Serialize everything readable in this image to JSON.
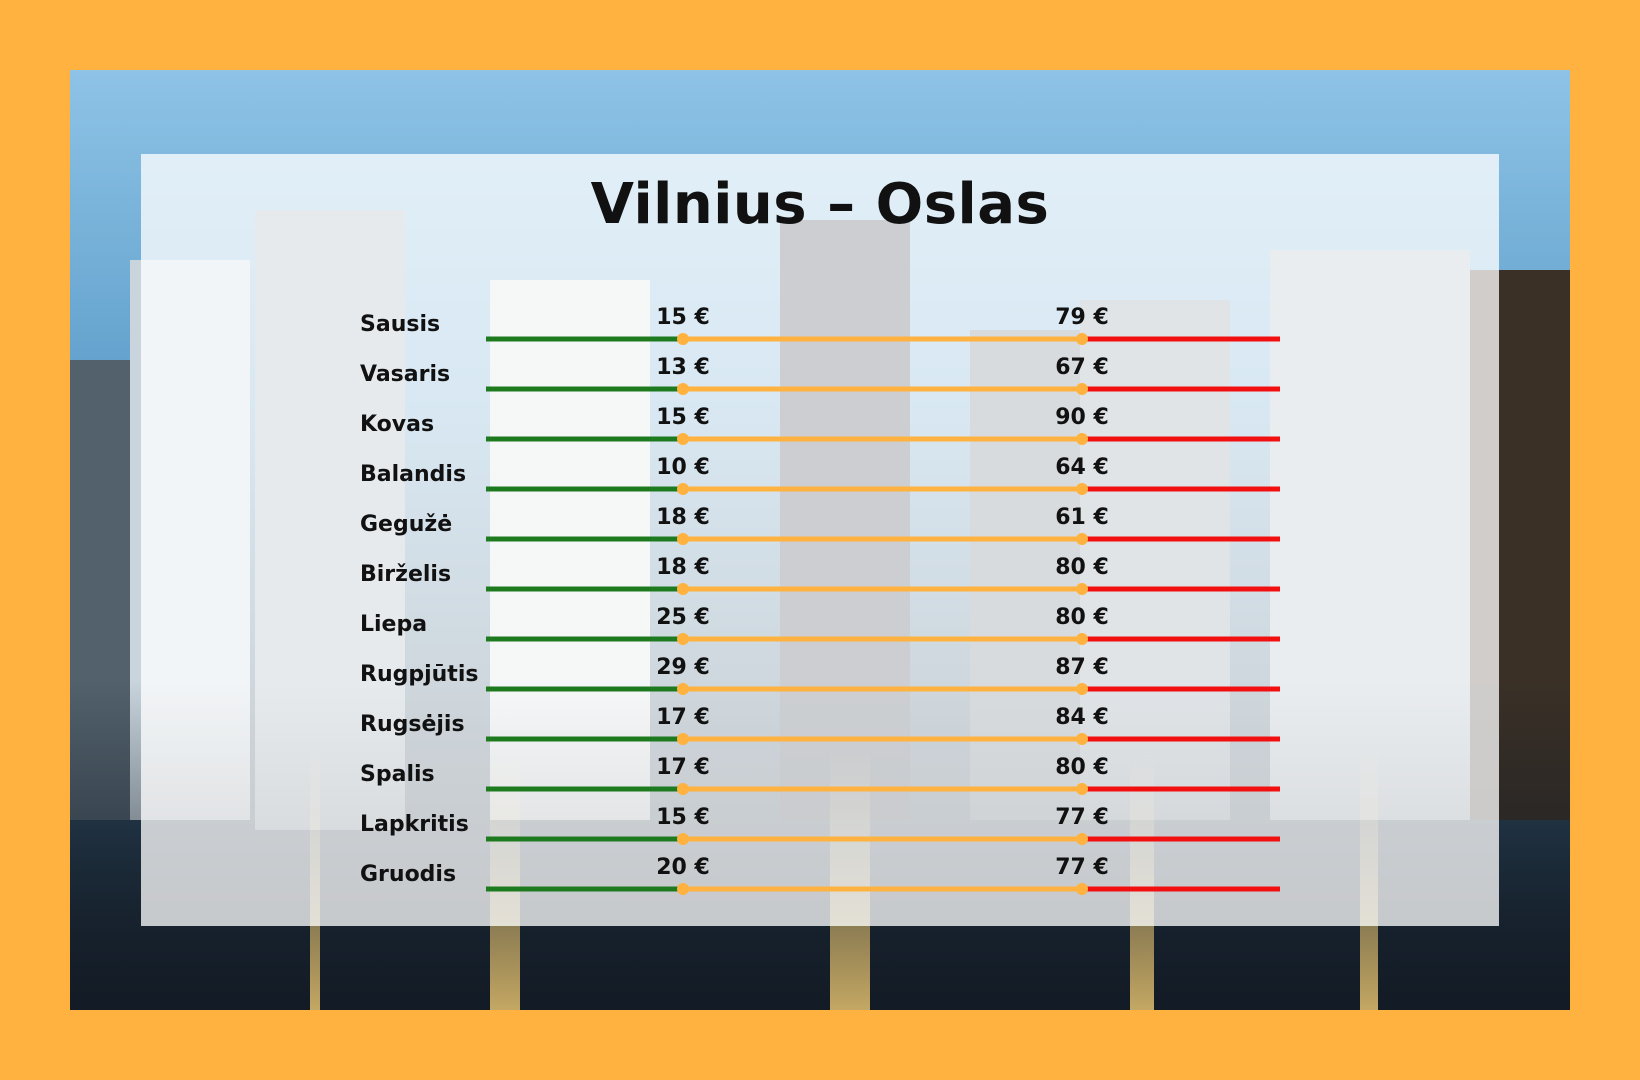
{
  "colors": {
    "background": "#FFB23F",
    "low_segment": "#1E7A1E",
    "mid_segment": "#FFB23F",
    "high_segment": "#F20F0F",
    "marker": "#FFB23F"
  },
  "chart_data": {
    "type": "range",
    "title": "Vilnius – Oslas",
    "currency": "€",
    "categories": [
      "Sausis",
      "Vasaris",
      "Kovas",
      "Balandis",
      "Gegužė",
      "Birželis",
      "Liepa",
      "Rugpjūtis",
      "Rugsėjis",
      "Spalis",
      "Lapkritis",
      "Gruodis"
    ],
    "series": [
      {
        "name": "",
        "values": [
          15,
          13,
          15,
          10,
          18,
          18,
          25,
          29,
          17,
          17,
          15,
          20
        ]
      },
      {
        "name": "",
        "values": [
          79,
          67,
          90,
          64,
          61,
          80,
          80,
          87,
          84,
          80,
          77,
          77
        ]
      }
    ],
    "min_labels": [
      "15 €",
      "13 €",
      "15 €",
      "10 €",
      "18 €",
      "18 €",
      "25 €",
      "29 €",
      "17 €",
      "17 €",
      "15 €",
      "20 €"
    ],
    "max_labels": [
      "79 €",
      "67 €",
      "90 €",
      "64 €",
      "61 €",
      "80 €",
      "80 €",
      "87 €",
      "84 €",
      "80 €",
      "77 €",
      "77 €"
    ]
  }
}
